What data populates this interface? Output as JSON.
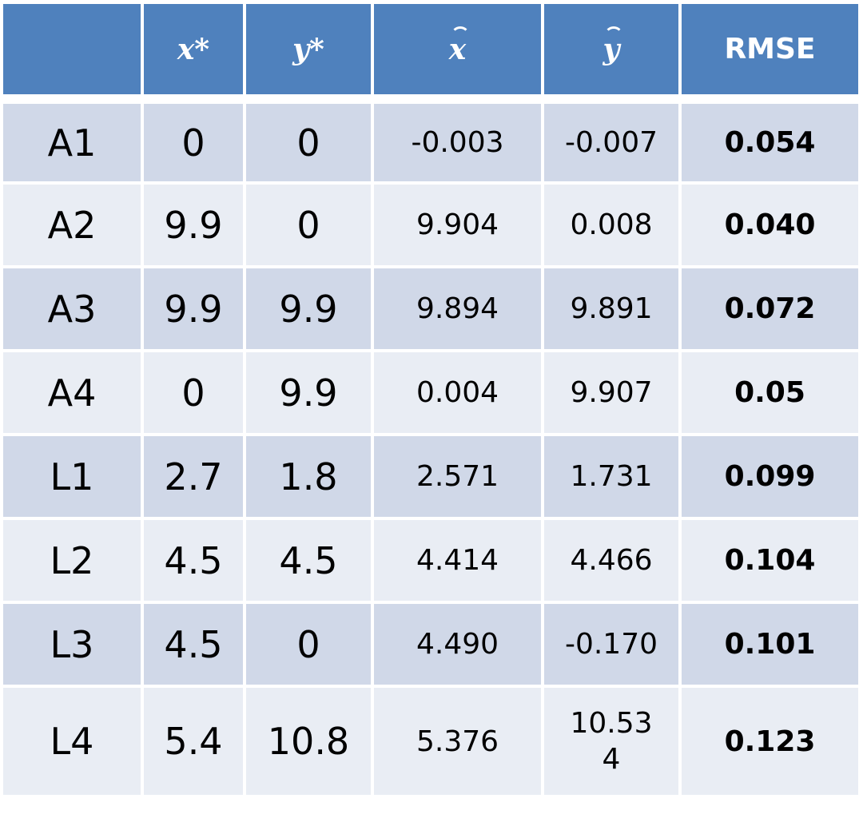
{
  "table": {
    "headers": [
      "",
      "x*",
      "y*",
      "x",
      "y",
      "RMSE"
    ],
    "rows": [
      {
        "label": "A1",
        "x_true": "0",
        "y_true": "0",
        "x_est": "-0.003",
        "y_est": "-0.007",
        "rmse": "0.054"
      },
      {
        "label": "A2",
        "x_true": "9.9",
        "y_true": "0",
        "x_est": "9.904",
        "y_est": "0.008",
        "rmse": "0.040"
      },
      {
        "label": "A3",
        "x_true": "9.9",
        "y_true": "9.9",
        "x_est": "9.894",
        "y_est": "9.891",
        "rmse": "0.072"
      },
      {
        "label": "A4",
        "x_true": "0",
        "y_true": "9.9",
        "x_est": "0.004",
        "y_est": "9.907",
        "rmse": "0.05"
      },
      {
        "label": "L1",
        "x_true": "2.7",
        "y_true": "1.8",
        "x_est": "2.571",
        "y_est": "1.731",
        "rmse": "0.099"
      },
      {
        "label": "L2",
        "x_true": "4.5",
        "y_true": "4.5",
        "x_est": "4.414",
        "y_est": "4.466",
        "rmse": "0.104"
      },
      {
        "label": "L3",
        "x_true": "4.5",
        "y_true": "0",
        "x_est": "4.490",
        "y_est": "-0.170",
        "rmse": "0.101"
      },
      {
        "label": "L4",
        "x_true": "5.4",
        "y_true": "10.8",
        "x_est": "5.376",
        "y_est_line1": "10.53",
        "y_est_line2": "4",
        "rmse": "0.123"
      }
    ]
  },
  "colors": {
    "header_bg": "#4f81bd",
    "row_dark": "#d0d8e8",
    "row_light": "#e9edf4"
  }
}
